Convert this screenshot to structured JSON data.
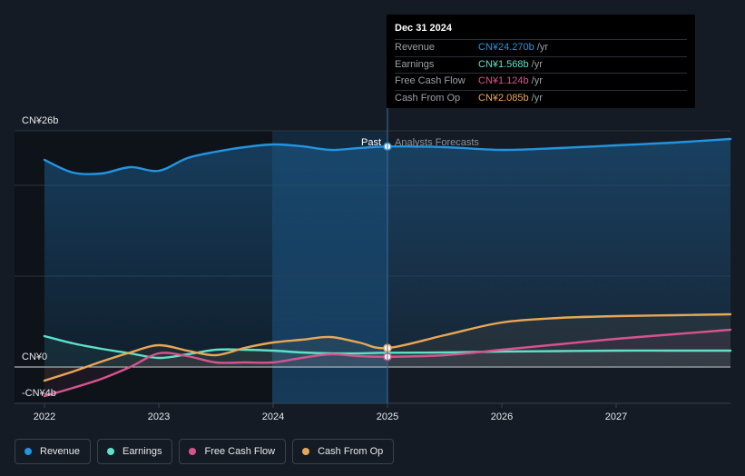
{
  "chart_data": {
    "type": "line",
    "title": "",
    "xlabel": "",
    "ylabel": "",
    "currency_prefix": "CN¥",
    "y_axis_labels": {
      "top": "CN¥26b",
      "zero": "CN¥0",
      "bottom": "-CN¥4b"
    },
    "ylim": [
      -4,
      26
    ],
    "xlim": [
      2022.0,
      2028.0
    ],
    "x_ticks": [
      {
        "value": 2022,
        "label": "2022"
      },
      {
        "value": 2023,
        "label": "2023"
      },
      {
        "value": 2024,
        "label": "2024"
      },
      {
        "value": 2025,
        "label": "2025"
      },
      {
        "value": 2026,
        "label": "2026"
      },
      {
        "value": 2027,
        "label": "2027"
      }
    ],
    "divider": {
      "x": 2025.0,
      "past_label": "Past",
      "forecast_label": "Analysts Forecasts"
    },
    "series": [
      {
        "name": "Revenue",
        "color": "#2394df",
        "points": [
          [
            2022.0,
            22.8
          ],
          [
            2022.25,
            21.4
          ],
          [
            2022.5,
            21.3
          ],
          [
            2022.75,
            22.0
          ],
          [
            2023.0,
            21.6
          ],
          [
            2023.25,
            23.0
          ],
          [
            2023.5,
            23.7
          ],
          [
            2023.75,
            24.2
          ],
          [
            2024.0,
            24.5
          ],
          [
            2024.25,
            24.3
          ],
          [
            2024.5,
            23.9
          ],
          [
            2024.75,
            24.1
          ],
          [
            2025.0,
            24.27
          ],
          [
            2025.5,
            24.2
          ],
          [
            2026.0,
            23.9
          ],
          [
            2026.5,
            24.1
          ],
          [
            2027.0,
            24.4
          ],
          [
            2027.5,
            24.7
          ],
          [
            2028.0,
            25.1
          ]
        ]
      },
      {
        "name": "Earnings",
        "color": "#5fe0c8",
        "points": [
          [
            2022.0,
            3.4
          ],
          [
            2022.25,
            2.6
          ],
          [
            2022.5,
            2.0
          ],
          [
            2022.75,
            1.5
          ],
          [
            2023.0,
            1.0
          ],
          [
            2023.25,
            1.4
          ],
          [
            2023.5,
            1.9
          ],
          [
            2023.75,
            1.9
          ],
          [
            2024.0,
            1.8
          ],
          [
            2024.25,
            1.6
          ],
          [
            2024.5,
            1.5
          ],
          [
            2024.75,
            1.5
          ],
          [
            2025.0,
            1.568
          ],
          [
            2025.5,
            1.6
          ],
          [
            2026.0,
            1.7
          ],
          [
            2026.5,
            1.75
          ],
          [
            2027.0,
            1.8
          ],
          [
            2027.5,
            1.8
          ],
          [
            2028.0,
            1.8
          ]
        ]
      },
      {
        "name": "Free Cash Flow",
        "color": "#d6548e",
        "points": [
          [
            2022.0,
            -3.2
          ],
          [
            2022.25,
            -2.3
          ],
          [
            2022.5,
            -1.3
          ],
          [
            2022.75,
            0.0
          ],
          [
            2023.0,
            1.5
          ],
          [
            2023.25,
            1.2
          ],
          [
            2023.5,
            0.5
          ],
          [
            2023.75,
            0.5
          ],
          [
            2024.0,
            0.5
          ],
          [
            2024.25,
            1.0
          ],
          [
            2024.5,
            1.4
          ],
          [
            2024.75,
            1.2
          ],
          [
            2025.0,
            1.124
          ],
          [
            2025.5,
            1.3
          ],
          [
            2026.0,
            1.9
          ],
          [
            2026.5,
            2.5
          ],
          [
            2027.0,
            3.1
          ],
          [
            2027.5,
            3.6
          ],
          [
            2028.0,
            4.1
          ]
        ]
      },
      {
        "name": "Cash From Op",
        "color": "#e8a757",
        "points": [
          [
            2022.0,
            -1.5
          ],
          [
            2022.25,
            -0.5
          ],
          [
            2022.5,
            0.6
          ],
          [
            2022.75,
            1.6
          ],
          [
            2023.0,
            2.4
          ],
          [
            2023.25,
            1.8
          ],
          [
            2023.5,
            1.3
          ],
          [
            2023.75,
            2.1
          ],
          [
            2024.0,
            2.7
          ],
          [
            2024.25,
            3.0
          ],
          [
            2024.5,
            3.3
          ],
          [
            2024.75,
            2.7
          ],
          [
            2025.0,
            2.085
          ],
          [
            2025.5,
            3.5
          ],
          [
            2026.0,
            4.9
          ],
          [
            2026.5,
            5.4
          ],
          [
            2027.0,
            5.6
          ],
          [
            2027.5,
            5.7
          ],
          [
            2028.0,
            5.8
          ]
        ]
      }
    ],
    "grid": true,
    "legend_placement": "bottom-left"
  },
  "tooltip": {
    "date": "Dec 31 2024",
    "rows": [
      {
        "name": "Revenue",
        "value": "CN¥24.270b",
        "unit": "/yr",
        "color": "#2394df"
      },
      {
        "name": "Earnings",
        "value": "CN¥1.568b",
        "unit": "/yr",
        "color": "#5fe0c8"
      },
      {
        "name": "Free Cash Flow",
        "value": "CN¥1.124b",
        "unit": "/yr",
        "color": "#d6548e"
      },
      {
        "name": "Cash From Op",
        "value": "CN¥2.085b",
        "unit": "/yr",
        "color": "#e8a757"
      }
    ]
  },
  "legend": [
    {
      "label": "Revenue",
      "color": "#2394df"
    },
    {
      "label": "Earnings",
      "color": "#5fe0c8"
    },
    {
      "label": "Free Cash Flow",
      "color": "#d6548e"
    },
    {
      "label": "Cash From Op",
      "color": "#e8a757"
    }
  ]
}
